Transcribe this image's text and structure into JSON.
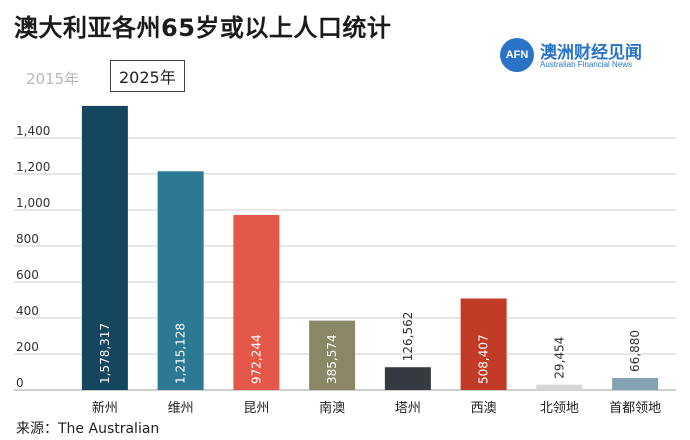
{
  "header": {
    "title": "澳大利亚各州65岁或以上人口统计",
    "tabs": [
      {
        "label": "2015年",
        "active": false
      },
      {
        "label": "2025年",
        "active": true
      }
    ]
  },
  "logo": {
    "mark": "AFN",
    "name": "澳洲财经见闻",
    "subtitle": "Australian Financial News"
  },
  "source": "来源：The Australian",
  "colors": {
    "grid": "#cfcfcf",
    "axis": "#bdbdbd"
  },
  "chart_data": {
    "type": "bar",
    "categories": [
      "新州",
      "维州",
      "昆州",
      "南澳",
      "塔州",
      "西澳",
      "北领地",
      "首都领地"
    ],
    "values": [
      1578317,
      1215128,
      972244,
      385574,
      126562,
      508407,
      29454,
      66880
    ],
    "value_labels": [
      "1,578,317",
      "1,215,128",
      "972,244",
      "385,574",
      "126,562",
      "508,407",
      "29,454",
      "66,880"
    ],
    "bar_colors": [
      "#14465f",
      "#2b7993",
      "#e4584a",
      "#8a8767",
      "#343a3f",
      "#c23b26",
      "#d5d5d5",
      "#85a2b2"
    ],
    "label_inside": [
      true,
      true,
      true,
      true,
      false,
      true,
      false,
      false
    ],
    "inside_label_colors": [
      "#ffffff",
      "#ffffff",
      "#ffffff",
      "#ffffff",
      "#333333",
      "#ffffff",
      "#333333",
      "#333333"
    ],
    "yticks": [
      0,
      200,
      400,
      600,
      800,
      1000,
      1200,
      1400
    ],
    "ytick_labels": [
      "0",
      "200",
      "400",
      "600",
      "800",
      "1,000",
      "1,200",
      "1,400"
    ],
    "ylim": [
      0,
      1600
    ],
    "y_unit_divisor": 1000,
    "grid": true,
    "title": "澳大利亚各州65岁或以上人口统计",
    "xlabel": "",
    "ylabel": ""
  }
}
